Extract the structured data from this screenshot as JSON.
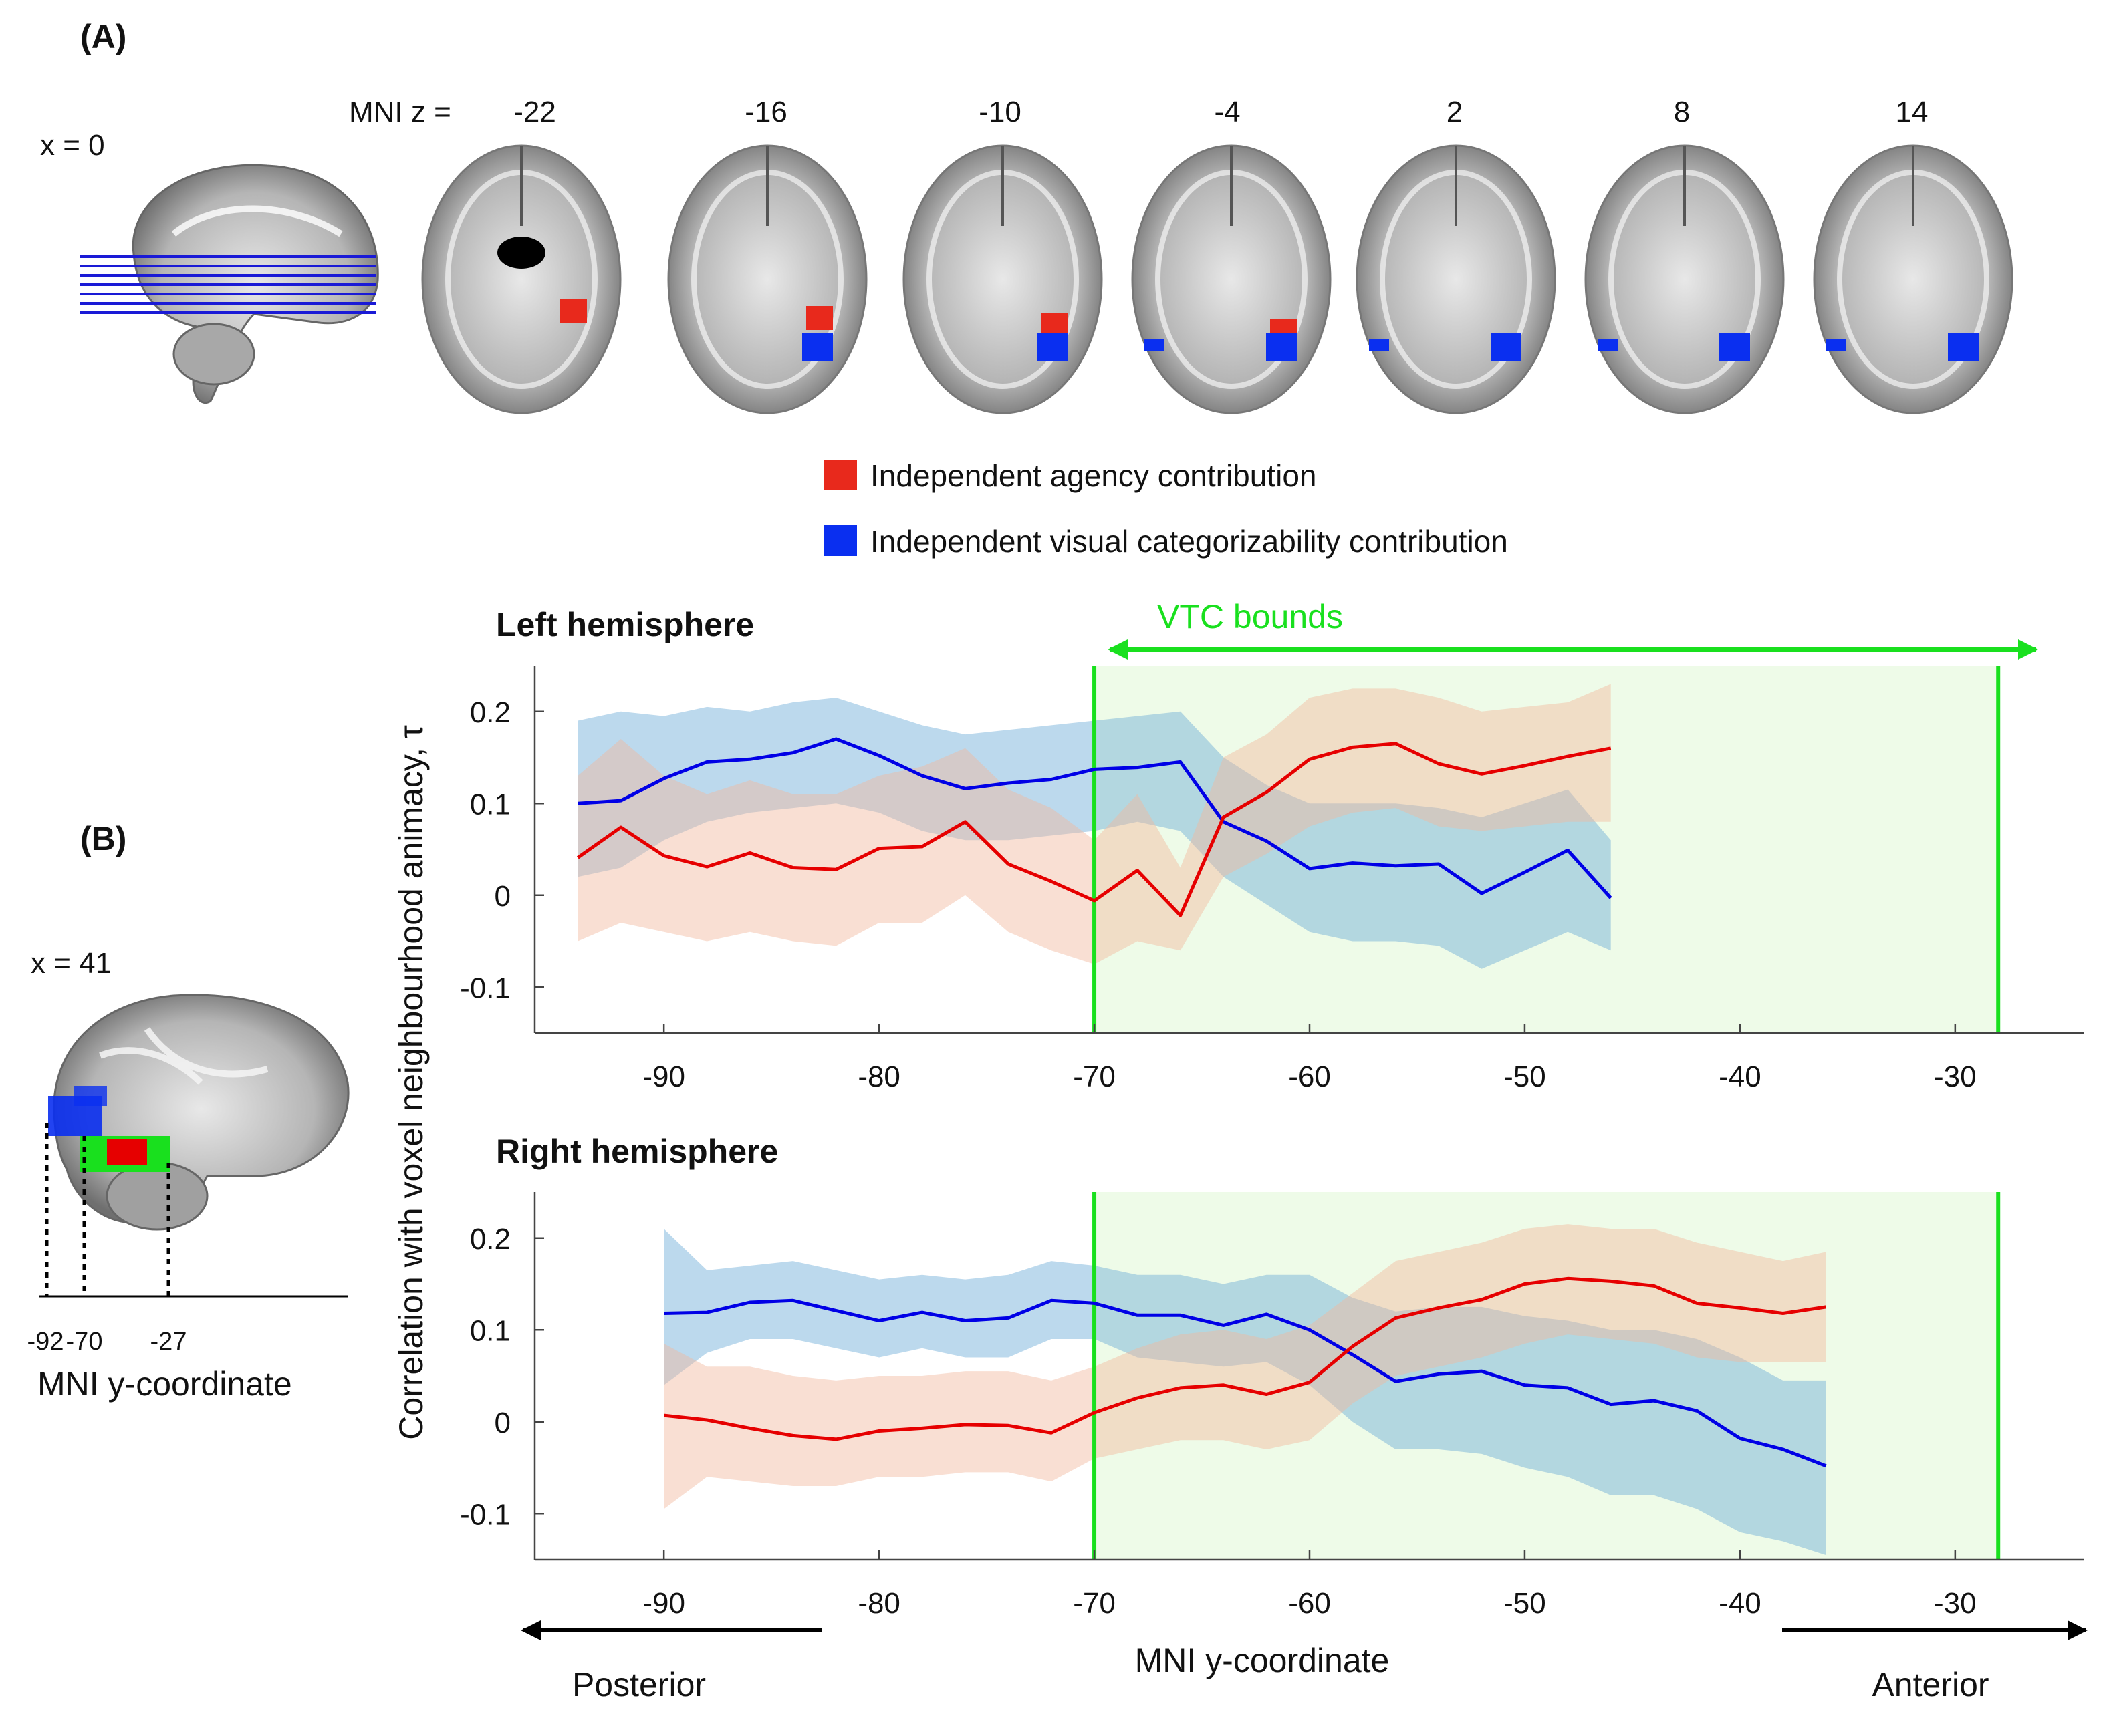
{
  "panel_a": {
    "label": "(A)",
    "sagittal_label": "x = 0",
    "slice_prefix": "MNI z =",
    "slices": [
      "-22",
      "-16",
      "-10",
      "-4",
      "2",
      "8",
      "14"
    ]
  },
  "legend": {
    "items": [
      {
        "label": "Independent agency contribution",
        "color": "#e8291c"
      },
      {
        "label": "Independent visual categorizability contribution",
        "color": "#0a2ff0"
      }
    ]
  },
  "panel_b": {
    "label": "(B)",
    "sagittal_label": "x = 41",
    "ticks": [
      "-92",
      "-70",
      "-27"
    ],
    "axis_label": "MNI y-coordinate"
  },
  "vtc": {
    "label": "VTC bounds",
    "range": [
      -70,
      -28
    ],
    "color": "#19e01e"
  },
  "shared": {
    "ylabel": "Correlation with voxel neighbourhood animacy, τ",
    "xlabel": "MNI y-coordinate",
    "posterior": "Posterior",
    "anterior": "Anterior"
  },
  "chart_data": [
    {
      "type": "line",
      "title": "Left hemisphere",
      "xlim": [
        -96,
        -24
      ],
      "ylim": [
        -0.15,
        0.25
      ],
      "xticks": [
        -90,
        -80,
        -70,
        -60,
        -50,
        -40,
        -30
      ],
      "yticks": [
        0.2,
        0.1,
        0,
        -0.1
      ],
      "ytick_labels": [
        "0.2",
        "0.1",
        "0",
        "-0.1"
      ],
      "xtick_labels": [
        "-90",
        "-80",
        "-70",
        "-60",
        "-50",
        "-40",
        "-30"
      ],
      "x": [
        -94,
        -92,
        -90,
        -88,
        -86,
        -84,
        -82,
        -80,
        -78,
        -76,
        -74,
        -72,
        -70,
        -68,
        -66,
        -64,
        -62,
        -60,
        -58,
        -56,
        -54,
        -52,
        -50,
        -48,
        -46
      ],
      "series": [
        {
          "color": "#0000e6",
          "band_color": "#6aaad8",
          "values": [
            0.1,
            0.103,
            0.127,
            0.145,
            0.148,
            0.155,
            0.17,
            0.152,
            0.13,
            0.116,
            0.122,
            0.126,
            0.137,
            0.139,
            0.145,
            0.08,
            0.059,
            0.029,
            0.035,
            0.032,
            0.034,
            0.002,
            0.025,
            0.049,
            -0.003
          ],
          "lower": [
            0.02,
            0.03,
            0.06,
            0.08,
            0.09,
            0.095,
            0.1,
            0.09,
            0.07,
            0.06,
            0.06,
            0.065,
            0.07,
            0.08,
            0.07,
            0.02,
            -0.01,
            -0.04,
            -0.05,
            -0.05,
            -0.055,
            -0.08,
            -0.06,
            -0.04,
            -0.06
          ],
          "upper": [
            0.19,
            0.2,
            0.195,
            0.205,
            0.2,
            0.21,
            0.215,
            0.2,
            0.185,
            0.175,
            0.18,
            0.185,
            0.19,
            0.195,
            0.2,
            0.15,
            0.12,
            0.1,
            0.1,
            0.1,
            0.095,
            0.085,
            0.1,
            0.115,
            0.06
          ]
        },
        {
          "color": "#e60000",
          "band_color": "#f2b99e",
          "values": [
            0.041,
            0.074,
            0.043,
            0.031,
            0.046,
            0.03,
            0.028,
            0.051,
            0.053,
            0.08,
            0.034,
            0.015,
            -0.006,
            0.027,
            -0.022,
            0.085,
            0.112,
            0.148,
            0.161,
            0.165,
            0.143,
            0.132,
            0.141,
            0.151,
            0.16
          ],
          "lower": [
            -0.05,
            -0.03,
            -0.04,
            -0.05,
            -0.04,
            -0.05,
            -0.055,
            -0.03,
            -0.03,
            0.0,
            -0.04,
            -0.06,
            -0.075,
            -0.05,
            -0.06,
            0.02,
            0.045,
            0.075,
            0.09,
            0.095,
            0.075,
            0.07,
            0.075,
            0.08,
            0.08
          ],
          "upper": [
            0.13,
            0.17,
            0.13,
            0.11,
            0.125,
            0.11,
            0.11,
            0.13,
            0.14,
            0.16,
            0.115,
            0.095,
            0.06,
            0.11,
            0.03,
            0.15,
            0.175,
            0.215,
            0.225,
            0.225,
            0.215,
            0.2,
            0.205,
            0.21,
            0.23
          ]
        }
      ]
    },
    {
      "type": "line",
      "title": "Right hemisphere",
      "xlim": [
        -96,
        -24
      ],
      "ylim": [
        -0.15,
        0.25
      ],
      "xticks": [
        -90,
        -80,
        -70,
        -60,
        -50,
        -40,
        -30
      ],
      "yticks": [
        0.2,
        0.1,
        0,
        -0.1
      ],
      "ytick_labels": [
        "0.2",
        "0.1",
        "0",
        "-0.1"
      ],
      "xtick_labels": [
        "-90",
        "-80",
        "-70",
        "-60",
        "-50",
        "-40",
        "-30"
      ],
      "x": [
        -90,
        -88,
        -86,
        -84,
        -82,
        -80,
        -78,
        -76,
        -74,
        -72,
        -70,
        -68,
        -66,
        -64,
        -62,
        -60,
        -58,
        -56,
        -54,
        -52,
        -50,
        -48,
        -46,
        -44,
        -42,
        -40,
        -38,
        -36
      ],
      "series": [
        {
          "color": "#0000e6",
          "band_color": "#6aaad8",
          "values": [
            0.118,
            0.119,
            0.13,
            0.132,
            0.121,
            0.11,
            0.119,
            0.11,
            0.113,
            0.132,
            0.129,
            0.116,
            0.116,
            0.105,
            0.117,
            0.1,
            0.073,
            0.044,
            0.052,
            0.055,
            0.04,
            0.037,
            0.019,
            0.023,
            0.012,
            -0.018,
            -0.03,
            -0.048
          ],
          "lower": [
            0.04,
            0.075,
            0.09,
            0.09,
            0.08,
            0.07,
            0.08,
            0.07,
            0.07,
            0.09,
            0.09,
            0.07,
            0.065,
            0.06,
            0.065,
            0.04,
            0.0,
            -0.03,
            -0.03,
            -0.035,
            -0.05,
            -0.06,
            -0.08,
            -0.08,
            -0.095,
            -0.12,
            -0.13,
            -0.145
          ],
          "upper": [
            0.21,
            0.165,
            0.17,
            0.175,
            0.165,
            0.155,
            0.16,
            0.155,
            0.16,
            0.175,
            0.17,
            0.16,
            0.16,
            0.15,
            0.16,
            0.16,
            0.135,
            0.12,
            0.125,
            0.125,
            0.115,
            0.11,
            0.1,
            0.1,
            0.09,
            0.07,
            0.045,
            0.045
          ]
        },
        {
          "color": "#e60000",
          "band_color": "#f2b99e",
          "values": [
            0.007,
            0.002,
            -0.007,
            -0.015,
            -0.019,
            -0.01,
            -0.007,
            -0.003,
            -0.004,
            -0.012,
            0.01,
            0.026,
            0.037,
            0.04,
            0.03,
            0.043,
            0.082,
            0.113,
            0.124,
            0.133,
            0.15,
            0.156,
            0.153,
            0.148,
            0.129,
            0.124,
            0.118,
            0.125
          ],
          "lower": [
            -0.095,
            -0.06,
            -0.065,
            -0.07,
            -0.07,
            -0.06,
            -0.06,
            -0.055,
            -0.055,
            -0.065,
            -0.04,
            -0.03,
            -0.02,
            -0.02,
            -0.03,
            -0.02,
            0.02,
            0.05,
            0.06,
            0.07,
            0.085,
            0.095,
            0.09,
            0.085,
            0.07,
            0.065,
            0.065,
            0.065
          ],
          "upper": [
            0.085,
            0.06,
            0.06,
            0.05,
            0.045,
            0.05,
            0.05,
            0.055,
            0.055,
            0.045,
            0.06,
            0.08,
            0.095,
            0.1,
            0.09,
            0.105,
            0.14,
            0.175,
            0.185,
            0.195,
            0.21,
            0.215,
            0.21,
            0.21,
            0.195,
            0.185,
            0.175,
            0.185
          ]
        }
      ]
    }
  ]
}
